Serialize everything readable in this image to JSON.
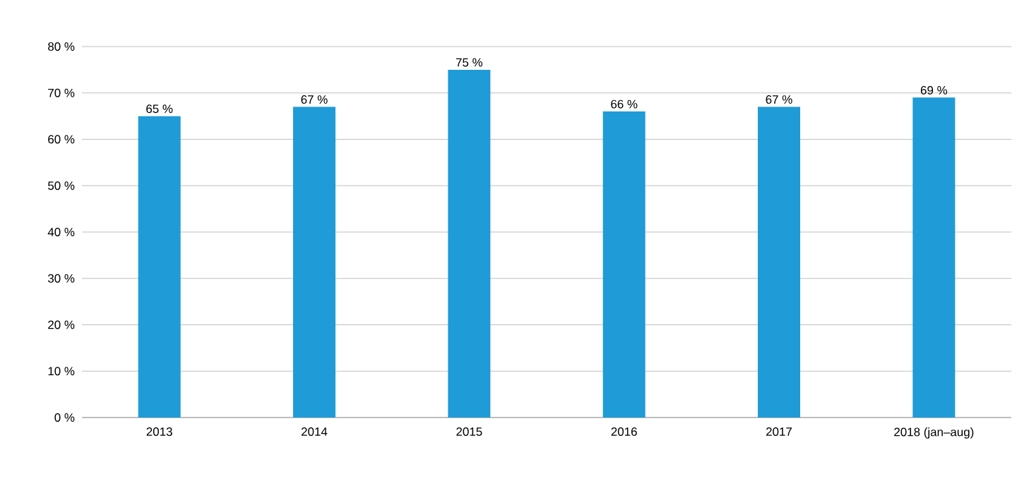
{
  "chart_data": {
    "type": "bar",
    "categories": [
      "2013",
      "2014",
      "2015",
      "2016",
      "2017",
      "2018 (jan–aug)"
    ],
    "values": [
      65,
      67,
      75,
      66,
      67,
      69
    ],
    "value_labels": [
      "65 %",
      "67 %",
      "75 %",
      "66 %",
      "67 %",
      "69 %"
    ],
    "color": "#1f9bd7",
    "ylim": [
      0,
      80
    ],
    "yticks": [
      {
        "value": 0,
        "label": "0 %"
      },
      {
        "value": 10,
        "label": "10 %"
      },
      {
        "value": 20,
        "label": "20 %"
      },
      {
        "value": 30,
        "label": "30 %"
      },
      {
        "value": 40,
        "label": "40 %"
      },
      {
        "value": 50,
        "label": "50 %"
      },
      {
        "value": 60,
        "label": "60 %"
      },
      {
        "value": 70,
        "label": "70 %"
      },
      {
        "value": 80,
        "label": "80 %"
      }
    ],
    "grid": "y"
  }
}
